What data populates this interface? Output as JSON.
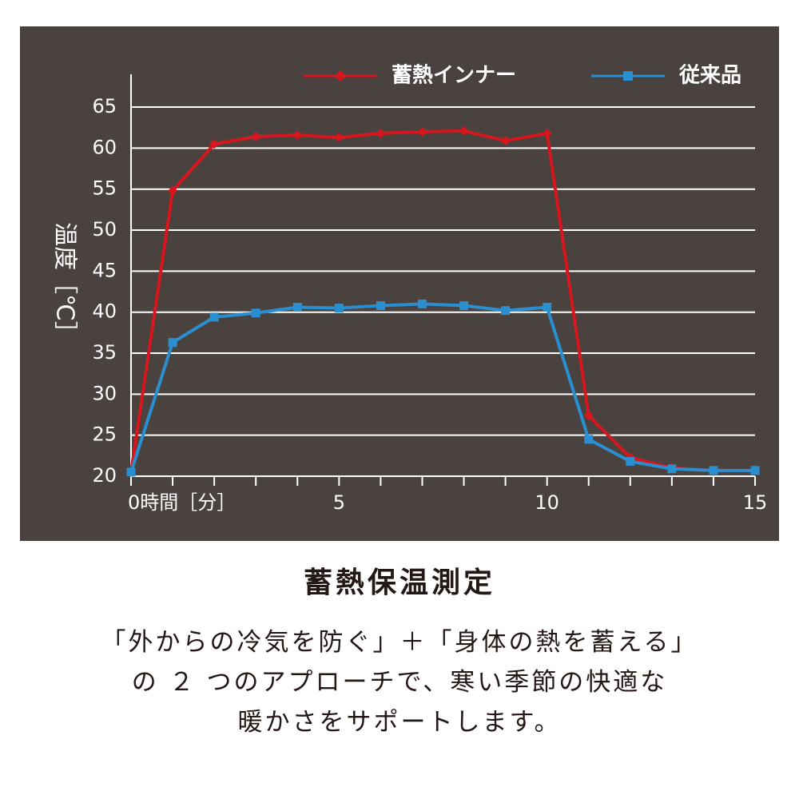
{
  "chart_data": {
    "type": "line",
    "y_label": "温度［℃］",
    "x": [
      0,
      1,
      2,
      3,
      4,
      5,
      6,
      7,
      8,
      9,
      10,
      11,
      12,
      13,
      14,
      15
    ],
    "series": [
      {
        "name": "蓄熱インナー",
        "color": "#d7161e",
        "marker": "diamond",
        "values": [
          20.5,
          54.8,
          60.5,
          61.4,
          61.6,
          61.3,
          61.8,
          62.0,
          62.1,
          60.9,
          61.8,
          27.4,
          22.3,
          21.0,
          20.7,
          20.7
        ]
      },
      {
        "name": "従来品",
        "color": "#2a8fd0",
        "marker": "square",
        "values": [
          20.5,
          36.3,
          39.4,
          39.9,
          40.6,
          40.5,
          40.8,
          41.0,
          40.8,
          40.2,
          40.6,
          24.5,
          21.8,
          20.9,
          20.7,
          20.7
        ]
      }
    ],
    "xlim": [
      0,
      15
    ],
    "xticks": [
      {
        "value": 0,
        "label": "0時間［分］"
      },
      {
        "value": 1,
        "label": null
      },
      {
        "value": 2,
        "label": null
      },
      {
        "value": 3,
        "label": null
      },
      {
        "value": 4,
        "label": null
      },
      5,
      {
        "value": 6,
        "label": null
      },
      {
        "value": 7,
        "label": null
      },
      {
        "value": 8,
        "label": null
      },
      {
        "value": 9,
        "label": null
      },
      10,
      {
        "value": 11,
        "label": null
      },
      {
        "value": 12,
        "label": null
      },
      {
        "value": 13,
        "label": null
      },
      {
        "value": 14,
        "label": null
      },
      15
    ],
    "ylim": [
      20,
      69
    ],
    "yticks": [
      20,
      25,
      30,
      35,
      40,
      45,
      50,
      55,
      60,
      65
    ],
    "grid": true,
    "legend": "top-right"
  },
  "caption": {
    "title": "蓄熱保温測定",
    "lines": [
      "「外からの冷気を防ぐ」＋「身体の熱を蓄える」",
      "の ２ つのアプローチで、寒い季節の快適な",
      "暖かさをサポートします。"
    ]
  }
}
